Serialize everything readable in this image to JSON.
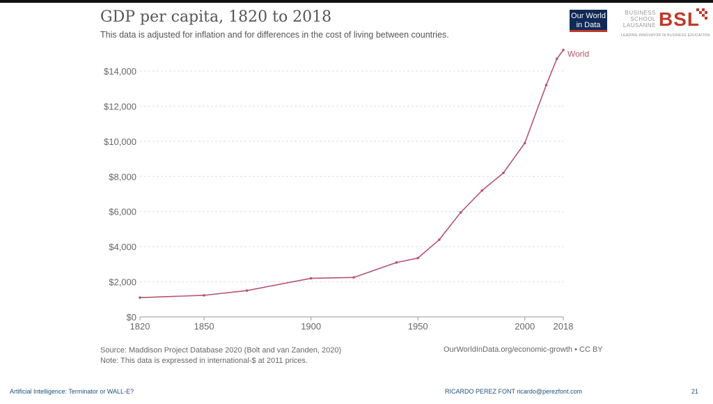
{
  "slide": {
    "title": "GDP per capita, 1820 to 2018",
    "subtitle": "This data is adjusted for inflation and for differences in the cost of living between countries.",
    "owid_logo": [
      "Our World",
      "in Data"
    ],
    "bsl_logo": {
      "lines": [
        "BUSINESS",
        "SCHOOL",
        "LAUSANNE"
      ],
      "mark": "BSL",
      "tagline": "LEADING INNOVATOR IN BUSINESS EDUCATION"
    },
    "source": "Source: Maddison Project Database 2020 (Bolt and van Zanden, 2020)",
    "note": "Note: This data is expressed in international-$ at 2011 prices.",
    "license": "OurWorldInData.org/economic-growth • CC BY",
    "footer_left": "Artificial Intelligence: Terminator or WALL-E?",
    "footer_mid": "RICARDO PEREZ FONT   ricardo@perezfont.com",
    "page_number": "21"
  },
  "chart_data": {
    "type": "line",
    "title": "GDP per capita, 1820 to 2018",
    "xlabel": "",
    "ylabel": "",
    "xlim": [
      1820,
      2018
    ],
    "ylim": [
      0,
      14000
    ],
    "x_ticks": [
      1820,
      1850,
      1900,
      1950,
      2000,
      2018
    ],
    "y_ticks": [
      "$0",
      "$2,000",
      "$4,000",
      "$6,000",
      "$8,000",
      "$10,000",
      "$12,000",
      "$14,000"
    ],
    "grid": true,
    "line_color": "#b5546f",
    "series": [
      {
        "name": "World",
        "points": [
          [
            1820,
            1100
          ],
          [
            1850,
            1230
          ],
          [
            1870,
            1500
          ],
          [
            1900,
            2200
          ],
          [
            1920,
            2250
          ],
          [
            1940,
            3100
          ],
          [
            1950,
            3350
          ],
          [
            1960,
            4400
          ],
          [
            1970,
            5950
          ],
          [
            1980,
            7200
          ],
          [
            1990,
            8200
          ],
          [
            2000,
            9900
          ],
          [
            2010,
            13200
          ],
          [
            2015,
            14700
          ],
          [
            2018,
            15200
          ]
        ]
      }
    ]
  }
}
